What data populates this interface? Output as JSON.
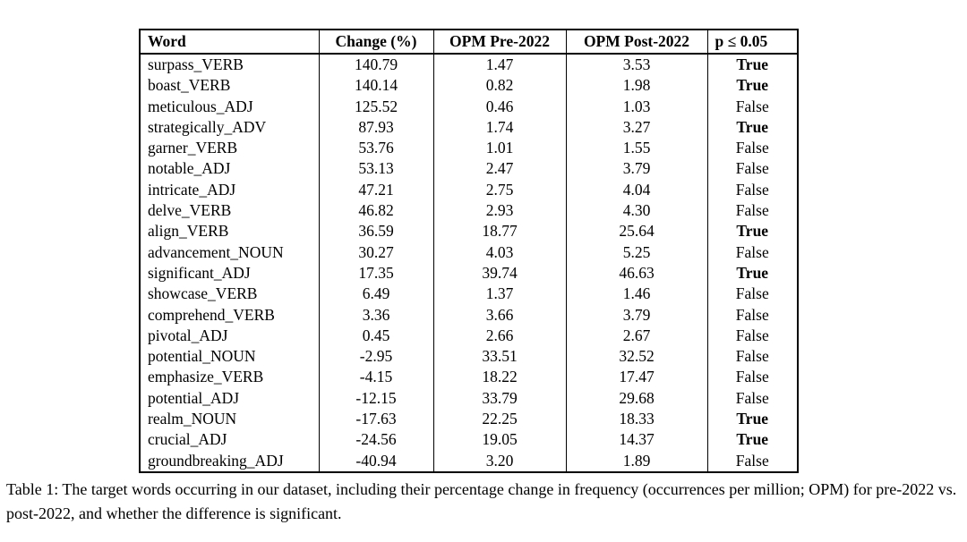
{
  "table": {
    "headers": [
      "Word",
      "Change (%)",
      "OPM Pre-2022",
      "OPM Post-2022",
      "p ≤ 0.05"
    ],
    "rows": [
      {
        "word": "surpass_VERB",
        "change": "140.79",
        "pre": "1.47",
        "post": "3.53",
        "sig": "True"
      },
      {
        "word": "boast_VERB",
        "change": "140.14",
        "pre": "0.82",
        "post": "1.98",
        "sig": "True"
      },
      {
        "word": "meticulous_ADJ",
        "change": "125.52",
        "pre": "0.46",
        "post": "1.03",
        "sig": "False"
      },
      {
        "word": "strategically_ADV",
        "change": "87.93",
        "pre": "1.74",
        "post": "3.27",
        "sig": "True"
      },
      {
        "word": "garner_VERB",
        "change": "53.76",
        "pre": "1.01",
        "post": "1.55",
        "sig": "False"
      },
      {
        "word": "notable_ADJ",
        "change": "53.13",
        "pre": "2.47",
        "post": "3.79",
        "sig": "False"
      },
      {
        "word": "intricate_ADJ",
        "change": "47.21",
        "pre": "2.75",
        "post": "4.04",
        "sig": "False"
      },
      {
        "word": "delve_VERB",
        "change": "46.82",
        "pre": "2.93",
        "post": "4.30",
        "sig": "False"
      },
      {
        "word": "align_VERB",
        "change": "36.59",
        "pre": "18.77",
        "post": "25.64",
        "sig": "True"
      },
      {
        "word": "advancement_NOUN",
        "change": "30.27",
        "pre": "4.03",
        "post": "5.25",
        "sig": "False"
      },
      {
        "word": "significant_ADJ",
        "change": "17.35",
        "pre": "39.74",
        "post": "46.63",
        "sig": "True"
      },
      {
        "word": "showcase_VERB",
        "change": "6.49",
        "pre": "1.37",
        "post": "1.46",
        "sig": "False"
      },
      {
        "word": "comprehend_VERB",
        "change": "3.36",
        "pre": "3.66",
        "post": "3.79",
        "sig": "False"
      },
      {
        "word": "pivotal_ADJ",
        "change": "0.45",
        "pre": "2.66",
        "post": "2.67",
        "sig": "False"
      },
      {
        "word": "potential_NOUN",
        "change": "-2.95",
        "pre": "33.51",
        "post": "32.52",
        "sig": "False"
      },
      {
        "word": "emphasize_VERB",
        "change": "-4.15",
        "pre": "18.22",
        "post": "17.47",
        "sig": "False"
      },
      {
        "word": "potential_ADJ",
        "change": "-12.15",
        "pre": "33.79",
        "post": "29.68",
        "sig": "False"
      },
      {
        "word": "realm_NOUN",
        "change": "-17.63",
        "pre": "22.25",
        "post": "18.33",
        "sig": "True"
      },
      {
        "word": "crucial_ADJ",
        "change": "-24.56",
        "pre": "19.05",
        "post": "14.37",
        "sig": "True"
      },
      {
        "word": "groundbreaking_ADJ",
        "change": "-40.94",
        "pre": "3.20",
        "post": "1.89",
        "sig": "False"
      }
    ]
  },
  "caption": {
    "text": "Table 1: The target words occurring in our dataset, including their percentage change in frequency (occurrences per million; OPM) for pre-2022 vs. post-2022, and whether the difference is significant."
  }
}
